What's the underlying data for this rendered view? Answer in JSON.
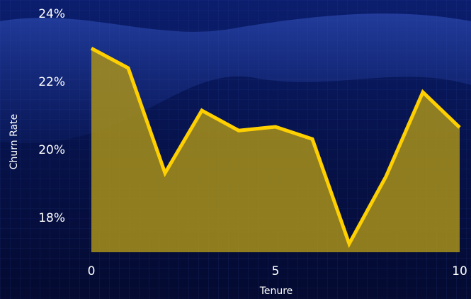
{
  "chart_data": {
    "type": "area",
    "x_label": "Tenure",
    "y_label": "Churn Rate",
    "x": [
      0,
      1,
      2,
      3,
      4,
      5,
      6,
      7,
      8,
      9,
      10
    ],
    "values": [
      23.0,
      22.42,
      19.33,
      21.17,
      20.58,
      20.69,
      20.33,
      17.25,
      19.23,
      21.71,
      20.67
    ],
    "line_color": "#ffd000",
    "fill_color": "#a8901a",
    "xlim": [
      0,
      10
    ],
    "xticks": [
      0,
      5,
      10
    ],
    "ylim": [
      17,
      24.4
    ],
    "yticks": [
      {
        "value": 18,
        "label": "18%"
      },
      {
        "value": 20,
        "label": "20%"
      },
      {
        "value": 22,
        "label": "22%"
      },
      {
        "value": 24,
        "label": "24%"
      }
    ]
  }
}
